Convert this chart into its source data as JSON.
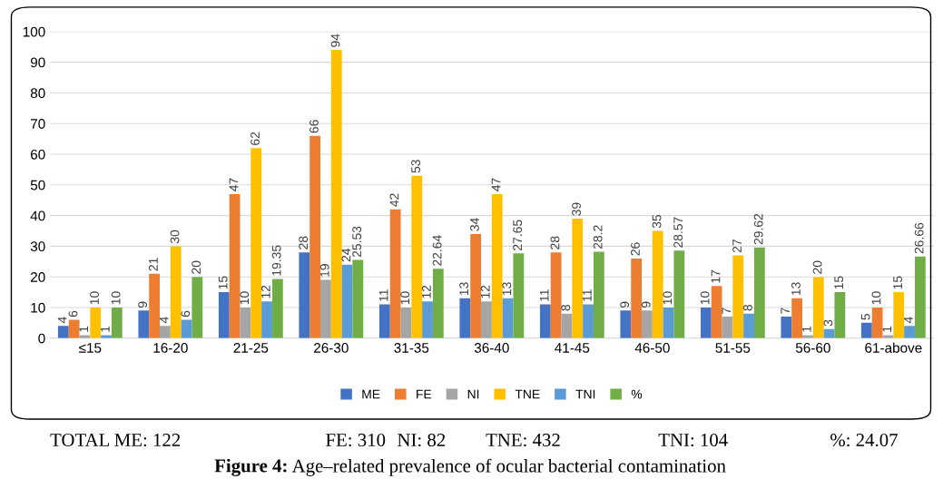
{
  "chart_data": {
    "type": "bar",
    "categories": [
      "≤15",
      "16-20",
      "21-25",
      "26-30",
      "31-35",
      "36-40",
      "41-45",
      "46-50",
      "51-55",
      "56-60",
      "61-above"
    ],
    "series": [
      {
        "name": "ME",
        "color": "#4472c4",
        "values": [
          4,
          9,
          15,
          28,
          11,
          13,
          11,
          9,
          10,
          7,
          5
        ]
      },
      {
        "name": "FE",
        "color": "#ed7d31",
        "values": [
          6,
          21,
          47,
          66,
          42,
          34,
          28,
          26,
          17,
          13,
          10
        ]
      },
      {
        "name": "NI",
        "color": "#a5a5a5",
        "values": [
          1,
          4,
          10,
          19,
          10,
          12,
          8,
          9,
          7,
          1,
          1
        ]
      },
      {
        "name": "TNE",
        "color": "#ffc000",
        "values": [
          10,
          30,
          62,
          94,
          53,
          47,
          39,
          35,
          27,
          20,
          15
        ]
      },
      {
        "name": "TNI",
        "color": "#5b9bd5",
        "values": [
          1,
          6,
          12,
          24,
          12,
          13,
          11,
          10,
          8,
          3,
          4
        ]
      },
      {
        "name": "%",
        "color": "#70ad47",
        "values": [
          10,
          20,
          19.35,
          25.53,
          22.64,
          27.65,
          28.2,
          28.57,
          29.62,
          15,
          26.66
        ]
      }
    ],
    "ylim": [
      0,
      100
    ],
    "yticks": [
      0,
      10,
      20,
      30,
      40,
      50,
      60,
      70,
      80,
      90,
      100
    ],
    "grid": "y",
    "legend": "bottom",
    "data_labels": true,
    "annotations": [
      "TOTAL ME: 122",
      "FE: 310",
      "NI: 82",
      "TNE: 432",
      "TNI: 104",
      "%: 24.07",
      "Figure 4: Age–related prevalence of ocular bacterial contamination"
    ]
  }
}
